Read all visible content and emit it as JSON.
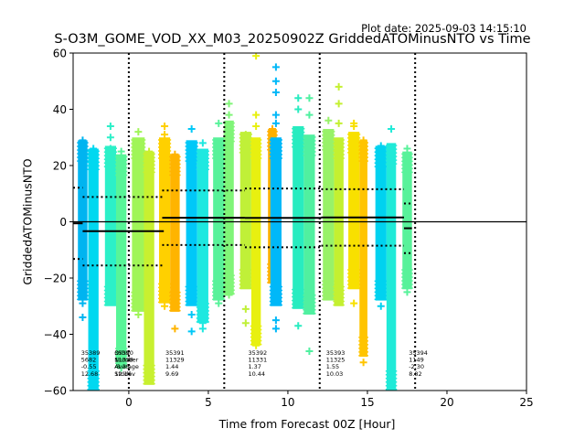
{
  "header": {
    "plot_date": "Plot date: 2025-09-03 14:15:10"
  },
  "chart_data": {
    "type": "scatter",
    "title": "S-O3M_GOME_VOD_XX_M03_20250902Z GriddedATOMinusNTO vs Time",
    "xlabel": "Time from Forecast 00Z [Hour]",
    "ylabel": "GriddedATOMinusNTO",
    "xlim": [
      -3.5,
      25
    ],
    "ylim": [
      -60,
      60
    ],
    "xticks": [
      "0",
      "5",
      "10",
      "15",
      "20",
      "25"
    ],
    "xtick_values": [
      0,
      5,
      10,
      15,
      20,
      25
    ],
    "yticks": [
      "60",
      "40",
      "20",
      "0",
      "−20",
      "−40",
      "−60"
    ],
    "ytick_values": [
      60,
      40,
      20,
      0,
      -20,
      -40,
      -60
    ],
    "grid": false,
    "forecast_boundaries": [
      0,
      6,
      12,
      18
    ],
    "zero_line": 0,
    "orbits": [
      {
        "orbit": "35389",
        "count": "5682",
        "mean": "-0.55",
        "std": "12.68",
        "x_range": [
          -3.5,
          -2.9
        ],
        "mean_value": -0.55,
        "std_value": 12.68,
        "label_x": -3.0
      },
      {
        "orbit": "35390",
        "count": "11328",
        "mean": "-3.35",
        "std": "12.16",
        "x_range": [
          -2.9,
          2.2
        ],
        "mean_value": -3.35,
        "std_value": 12.16,
        "label_x": -0.9,
        "overlap_labels": [
          "Orbit",
          "Number",
          "Average",
          "Stddev"
        ]
      },
      {
        "orbit": "35391",
        "count": "11329",
        "mean": "1.44",
        "std": "9.69",
        "x_range": [
          2.1,
          7.3
        ],
        "mean_value": 1.44,
        "std_value": 9.69,
        "label_x": 2.3
      },
      {
        "orbit": "35392",
        "count": "11331",
        "mean": "1.37",
        "std": "10.44",
        "x_range": [
          7.3,
          12.1
        ],
        "mean_value": 1.37,
        "std_value": 10.44,
        "label_x": 7.5
      },
      {
        "orbit": "35393",
        "count": "11325",
        "mean": "1.55",
        "std": "10.03",
        "x_range": [
          12.1,
          17.3
        ],
        "mean_value": 1.55,
        "std_value": 10.03,
        "label_x": 12.4
      },
      {
        "orbit": "35394",
        "count": "1149",
        "mean": "-2.30",
        "std": "8.82",
        "x_range": [
          17.3,
          17.8
        ],
        "mean_value": -2.3,
        "std_value": 8.82,
        "label_x": 17.6
      }
    ],
    "series": [
      {
        "x": [
          -3.2,
          -2.6
        ],
        "ymin": -28,
        "ymax": 29,
        "color": "#00b4f0",
        "outliers": [
          29,
          27,
          -29,
          -34
        ]
      },
      {
        "x": [
          -2.55,
          -1.9
        ],
        "ymin": -60,
        "ymax": 26,
        "color": "#00d8f0",
        "outliers": [
          26,
          24,
          -40,
          -48,
          -55
        ]
      },
      {
        "x": [
          -1.5,
          -0.8
        ],
        "ymin": -30,
        "ymax": 27,
        "color": "#2cf0c8",
        "outliers": [
          34,
          30,
          26
        ]
      },
      {
        "x": [
          -0.8,
          -0.15
        ],
        "ymin": -52,
        "ymax": 24,
        "color": "#58f598",
        "outliers": [
          22,
          25,
          -45,
          -52
        ]
      },
      {
        "x": [
          0.2,
          1.0
        ],
        "ymin": -32,
        "ymax": 30,
        "color": "#a0f558",
        "outliers": [
          32,
          27,
          -30,
          -33
        ]
      },
      {
        "x": [
          0.95,
          1.6
        ],
        "ymin": -58,
        "ymax": 25,
        "color": "#c8f030",
        "outliers": [
          25,
          -48,
          -56
        ]
      },
      {
        "x": [
          1.9,
          2.6
        ],
        "ymin": -29,
        "ymax": 30,
        "color": "#ffd000",
        "outliers": [
          34,
          31,
          -28,
          -30
        ]
      },
      {
        "x": [
          2.6,
          3.2
        ],
        "ymin": -32,
        "ymax": 24,
        "color": "#ffb400",
        "outliers": [
          24,
          22,
          -38
        ]
      },
      {
        "x": [
          3.6,
          4.3
        ],
        "ymin": -30,
        "ymax": 29,
        "color": "#00c8f8",
        "outliers": [
          33,
          -33,
          -39
        ]
      },
      {
        "x": [
          4.3,
          5.0
        ],
        "ymin": -36,
        "ymax": 26,
        "color": "#1ee8e0",
        "outliers": [
          28,
          -36,
          -38
        ]
      },
      {
        "x": [
          5.3,
          6.0
        ],
        "ymin": -28,
        "ymax": 30,
        "color": "#58f29a",
        "outliers": [
          35,
          -27,
          -29
        ]
      },
      {
        "x": [
          6.0,
          6.6
        ],
        "ymin": -26,
        "ymax": 36,
        "color": "#80f578",
        "outliers": [
          42,
          38,
          34,
          -26
        ]
      },
      {
        "x": [
          7.0,
          7.7
        ],
        "ymin": -24,
        "ymax": 32,
        "color": "#c0f038",
        "outliers": [
          31,
          -31,
          -36
        ]
      },
      {
        "x": [
          7.7,
          8.3
        ],
        "ymin": -44,
        "ymax": 30,
        "color": "#e8f010",
        "outliers": [
          59,
          38,
          34,
          -40,
          -44
        ]
      },
      {
        "x": [
          8.75,
          9.3
        ],
        "ymin": -22,
        "ymax": 33,
        "color": "#ffb000",
        "outliers": [
          33,
          -20
        ]
      },
      {
        "x": [
          8.9,
          9.6
        ],
        "ymin": -30,
        "ymax": 30,
        "color": "#00b8f8",
        "outliers": [
          55,
          50,
          46,
          38,
          35,
          -35,
          -38
        ]
      },
      {
        "x": [
          10.3,
          11.0
        ],
        "ymin": -31,
        "ymax": 34,
        "color": "#28ecc0",
        "outliers": [
          40,
          44,
          -37
        ]
      },
      {
        "x": [
          11.0,
          11.7
        ],
        "ymin": -33,
        "ymax": 31,
        "color": "#50f0a0",
        "outliers": [
          44,
          38,
          -46
        ]
      },
      {
        "x": [
          12.2,
          12.9
        ],
        "ymin": -28,
        "ymax": 33,
        "color": "#98f268",
        "outliers": [
          36,
          30,
          -26
        ]
      },
      {
        "x": [
          12.9,
          13.5
        ],
        "ymin": -30,
        "ymax": 30,
        "color": "#c4f030",
        "outliers": [
          48,
          42,
          35,
          -28
        ]
      },
      {
        "x": [
          13.8,
          14.5
        ],
        "ymin": -24,
        "ymax": 32,
        "color": "#f8e000",
        "outliers": [
          35,
          34,
          -29
        ]
      },
      {
        "x": [
          14.5,
          15.0
        ],
        "ymin": -48,
        "ymax": 29,
        "color": "#ffc400",
        "outliers": [
          29,
          -38,
          -43,
          -50
        ]
      },
      {
        "x": [
          15.5,
          16.2
        ],
        "ymin": -28,
        "ymax": 27,
        "color": "#00d2f0",
        "outliers": [
          27,
          -30
        ]
      },
      {
        "x": [
          16.2,
          16.8
        ],
        "ymin": -60,
        "ymax": 28,
        "color": "#20ead8",
        "outliers": [
          33,
          -50,
          -56,
          -59
        ]
      },
      {
        "x": [
          17.2,
          17.8
        ],
        "ymin": -24,
        "ymax": 25,
        "color": "#58f29a",
        "outliers": [
          26,
          -25
        ]
      }
    ]
  }
}
